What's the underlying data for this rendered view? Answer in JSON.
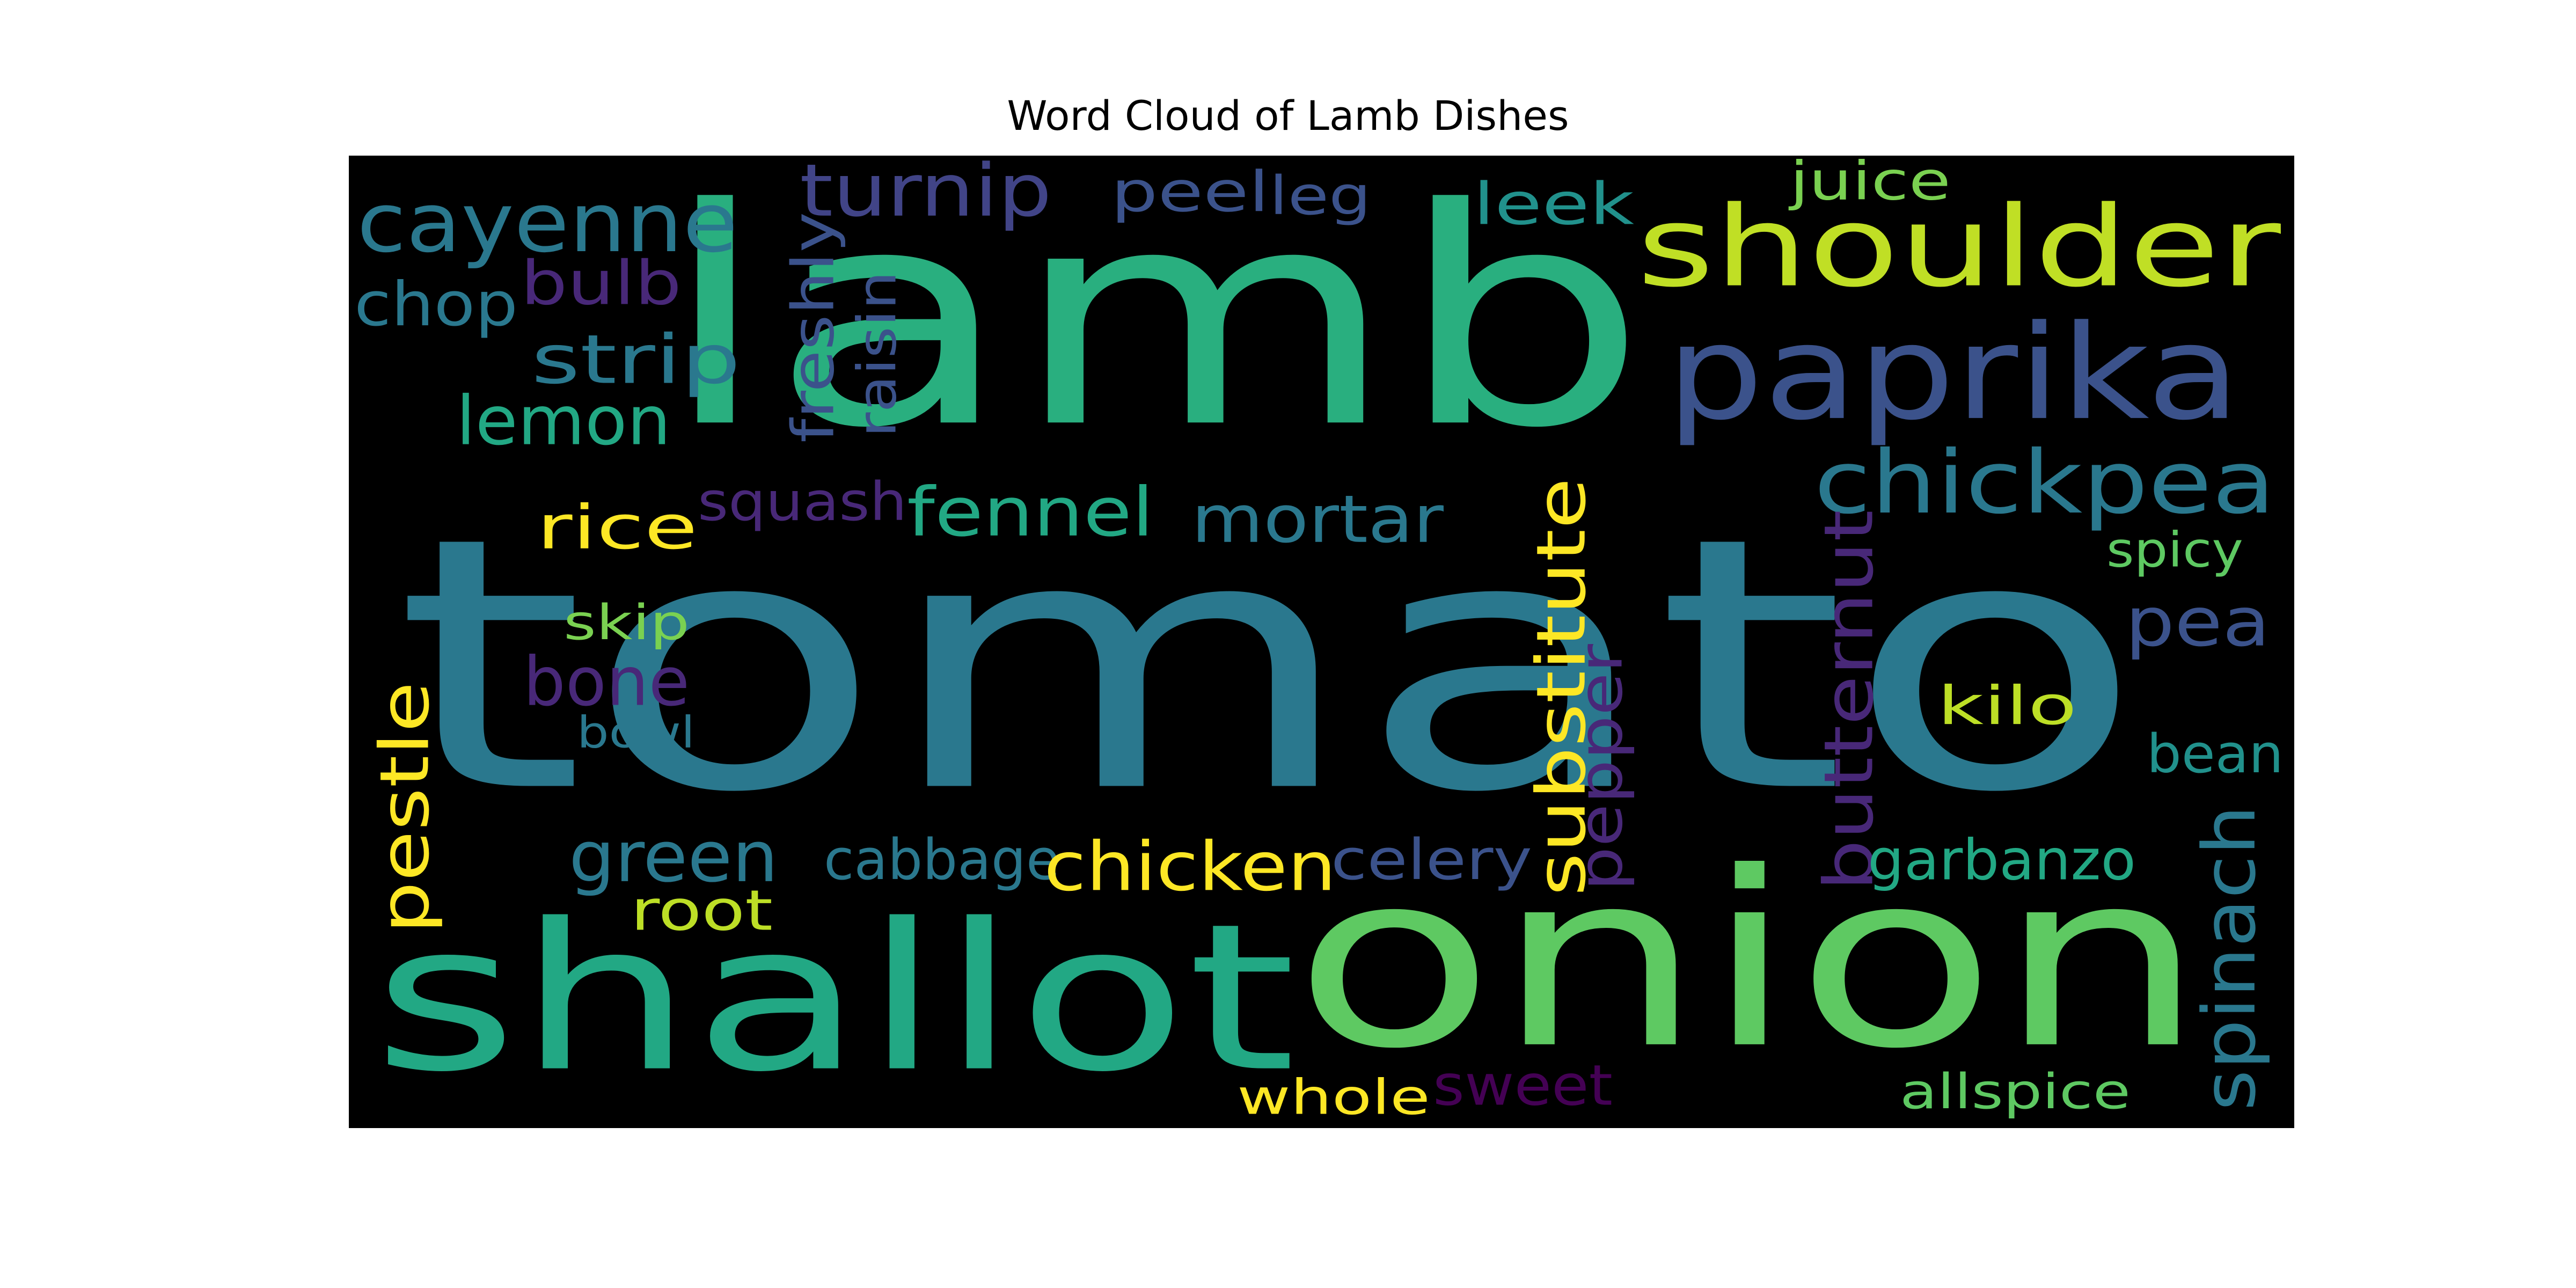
{
  "chart_data": {
    "type": "wordcloud",
    "title": "Word Cloud of Lamb Dishes",
    "background": "#000000",
    "words": [
      {
        "text": "tomato",
        "color": "#2a788e"
      },
      {
        "text": "lamb",
        "color": "#29af7f"
      },
      {
        "text": "onion",
        "color": "#5ec962"
      },
      {
        "text": "shallot",
        "color": "#22a884"
      },
      {
        "text": "shoulder",
        "color": "#c0df25"
      },
      {
        "text": "paprika",
        "color": "#3b528b"
      },
      {
        "text": "chickpea",
        "color": "#2a788e"
      },
      {
        "text": "cayenne",
        "color": "#2a788e"
      },
      {
        "text": "turnip",
        "color": "#414487"
      },
      {
        "text": "peel",
        "color": "#3b528b"
      },
      {
        "text": "leg",
        "color": "#3b528b"
      },
      {
        "text": "leek",
        "color": "#21918c"
      },
      {
        "text": "juice",
        "color": "#7ad151"
      },
      {
        "text": "chop",
        "color": "#2a788e"
      },
      {
        "text": "bulb",
        "color": "#482878"
      },
      {
        "text": "strip",
        "color": "#2a788e"
      },
      {
        "text": "lemon",
        "color": "#22a884"
      },
      {
        "text": "freshly",
        "color": "#3b528b"
      },
      {
        "text": "raisin",
        "color": "#3b528b"
      },
      {
        "text": "rice",
        "color": "#fde725"
      },
      {
        "text": "squash",
        "color": "#482878"
      },
      {
        "text": "fennel",
        "color": "#22a884"
      },
      {
        "text": "mortar",
        "color": "#2a788e"
      },
      {
        "text": "substitute",
        "color": "#fde725"
      },
      {
        "text": "butternut",
        "color": "#482878"
      },
      {
        "text": "spicy",
        "color": "#5ec962"
      },
      {
        "text": "pea",
        "color": "#3b528b"
      },
      {
        "text": "skip",
        "color": "#7ad151"
      },
      {
        "text": "bone",
        "color": "#482878"
      },
      {
        "text": "bowl",
        "color": "#2a788e"
      },
      {
        "text": "pepper",
        "color": "#482878"
      },
      {
        "text": "kilo",
        "color": "#bddf26"
      },
      {
        "text": "bean",
        "color": "#21918c"
      },
      {
        "text": "pestle",
        "color": "#fde725"
      },
      {
        "text": "green",
        "color": "#2a788e"
      },
      {
        "text": "cabbage",
        "color": "#2a788e"
      },
      {
        "text": "chicken",
        "color": "#fde725"
      },
      {
        "text": "celery",
        "color": "#3b528b"
      },
      {
        "text": "garbanzo",
        "color": "#22a884"
      },
      {
        "text": "spinach",
        "color": "#2a788e"
      },
      {
        "text": "root",
        "color": "#bddf26"
      },
      {
        "text": "whole",
        "color": "#fde725"
      },
      {
        "text": "sweet",
        "color": "#440154"
      },
      {
        "text": "allspice",
        "color": "#5ec962"
      }
    ]
  }
}
